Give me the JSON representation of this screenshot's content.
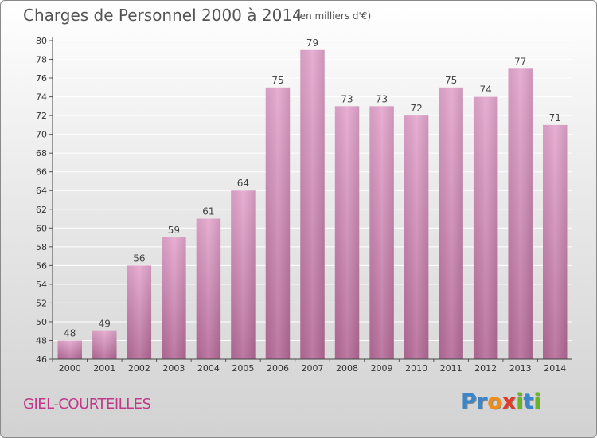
{
  "header": {
    "title": "Charges de Personnel 2000 à 2014",
    "unit": "(en milliers d'€)"
  },
  "footer": {
    "commune": "GIEL-COURTEILLES",
    "logo_letters": [
      "P",
      "r",
      "o",
      "x",
      "i",
      "t",
      "i"
    ],
    "logo_colors": [
      "#3a86c8",
      "#3a86c8",
      "#f08c1a",
      "#e03a2a",
      "#6ab42a",
      "#3a86c8",
      "#6ab42a"
    ]
  },
  "chart_data": {
    "type": "bar",
    "categories": [
      "2000",
      "2001",
      "2002",
      "2003",
      "2004",
      "2005",
      "2006",
      "2007",
      "2008",
      "2009",
      "2010",
      "2011",
      "2012",
      "2013",
      "2014"
    ],
    "values": [
      48,
      49,
      56,
      59,
      61,
      64,
      75,
      79,
      73,
      73,
      72,
      75,
      74,
      77,
      71
    ],
    "ylim": [
      46,
      80
    ],
    "yticks": [
      46,
      48,
      50,
      52,
      54,
      56,
      58,
      60,
      62,
      64,
      66,
      68,
      70,
      72,
      74,
      76,
      78,
      80
    ],
    "grid": true,
    "bar_color_top": "#e4a7ce",
    "bar_color_bottom": "#b56b98"
  }
}
